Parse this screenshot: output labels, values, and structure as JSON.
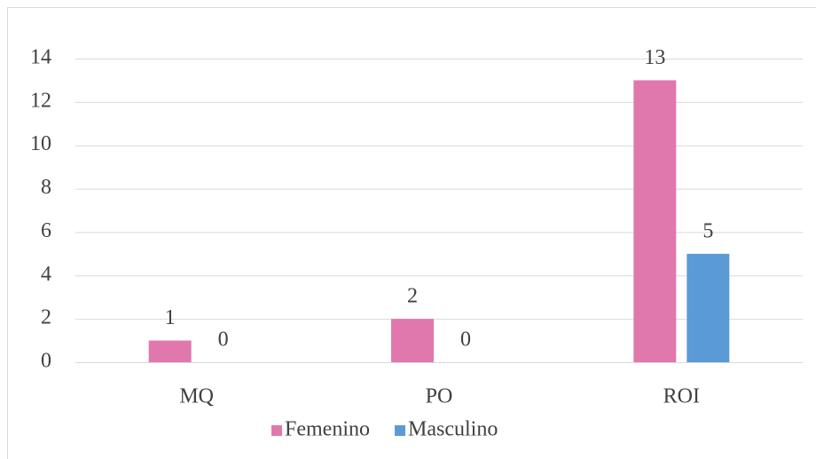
{
  "chart_data": {
    "type": "bar",
    "categories": [
      "MQ",
      "PO",
      "ROI"
    ],
    "series": [
      {
        "name": "Femenino",
        "color": "#e178ad",
        "values": [
          1,
          2,
          13
        ]
      },
      {
        "name": "Masculino",
        "color": "#5b9bd5",
        "values": [
          0,
          0,
          5
        ]
      }
    ],
    "ylim": [
      0,
      14
    ],
    "yticks": [
      0,
      2,
      4,
      6,
      8,
      10,
      12,
      14
    ],
    "grid": true,
    "legend": "bottom",
    "data_labels": true
  }
}
